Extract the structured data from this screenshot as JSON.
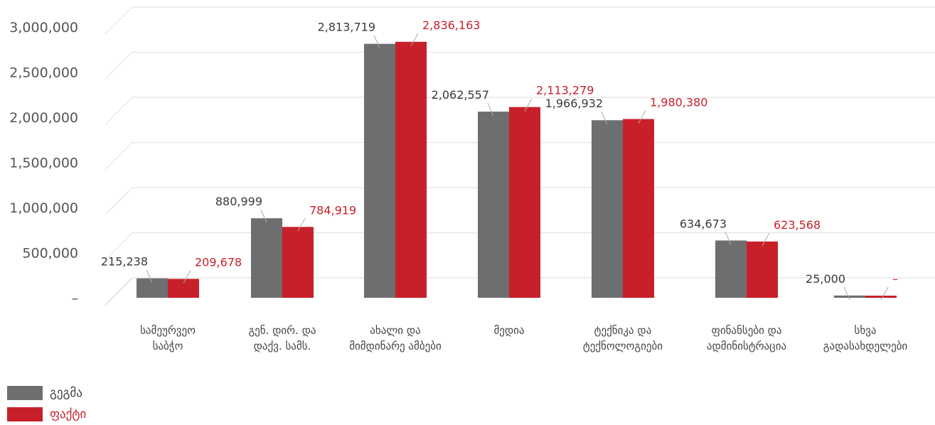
{
  "chart_data": {
    "type": "bar",
    "categories": [
      [
        "სამეურვეო",
        "საბჭო"
      ],
      [
        "გენ. დირ. და",
        "დაქვ. სამს."
      ],
      [
        "ახალი და",
        "მიმდინარე ამბები"
      ],
      [
        "მედია"
      ],
      [
        "ტექნიკა და",
        "ტექნოლოგიები"
      ],
      [
        "ფინანსები და",
        "ადმინისტრაცია"
      ],
      [
        "სხვა",
        "გადასახდელები"
      ]
    ],
    "series": [
      {
        "name": "გეგმა",
        "color": "#6d6e70",
        "values": [
          215238,
          880999,
          2813719,
          2062557,
          1966932,
          634673,
          25000
        ],
        "labels": [
          "215,238",
          "880,999",
          "2,813,719",
          "2,062,557",
          "1,966,932",
          "634,673",
          "25,000"
        ]
      },
      {
        "name": "ფაქტი",
        "color": "#c8202a",
        "values": [
          209678,
          784919,
          2836163,
          2113279,
          1980380,
          623568,
          0
        ],
        "labels": [
          "209,678",
          "784,919",
          "2,836,163",
          "2,113,279",
          "1,980,380",
          "623,568",
          "–"
        ]
      }
    ],
    "yticks": [
      "–",
      "500,000",
      "1,000,000",
      "1,500,000",
      "2,000,000",
      "2,500,000",
      "3,000,000"
    ],
    "ylim": [
      0,
      3000000
    ],
    "grid": true,
    "legend_position": "bottom-left"
  }
}
